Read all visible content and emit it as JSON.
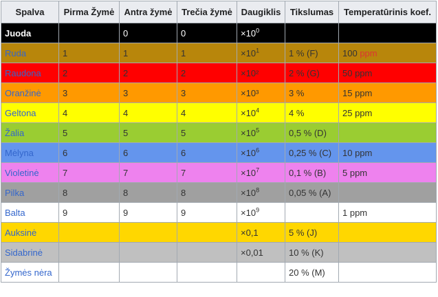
{
  "headers": [
    "Spalva",
    "Pirma Žymė",
    "Antra žymė",
    "Trečia žymė",
    "Daugiklis",
    "Tikslumas",
    "Temperatūrinis koef."
  ],
  "rows": [
    {
      "name": "Juoda",
      "bg": "#000000",
      "d1": "",
      "d2": "0",
      "d3": "0",
      "mult_base": "×10",
      "mult_exp": "0",
      "tol": "",
      "temp": "",
      "temp_unit": ""
    },
    {
      "name": "Ruda",
      "bg": "#b8860b",
      "d1": "1",
      "d2": "1",
      "d3": "1",
      "mult_base": "×10",
      "mult_exp": "1",
      "tol": "1 % (F)",
      "temp": "100 ",
      "temp_unit": "ppm"
    },
    {
      "name": "Raudona",
      "bg": "#ff0000",
      "d1": "2",
      "d2": "2",
      "d3": "2",
      "mult_base": "×10²",
      "mult_exp": "",
      "tol": "2 % (G)",
      "temp": "50 ppm",
      "temp_unit": ""
    },
    {
      "name": "Oranžinė",
      "bg": "#ff9900",
      "d1": "3",
      "d2": "3",
      "d3": "3",
      "mult_base": "×10³",
      "mult_exp": "",
      "tol": "3 %",
      "temp": "15 ppm",
      "temp_unit": ""
    },
    {
      "name": "Geltona",
      "bg": "#ffff00",
      "d1": "4",
      "d2": "4",
      "d3": "4",
      "mult_base": "×10",
      "mult_exp": "4",
      "tol": "4 %",
      "temp": "25 ppm",
      "temp_unit": ""
    },
    {
      "name": "Žalia",
      "bg": "#9acd32",
      "d1": "5",
      "d2": "5",
      "d3": "5",
      "mult_base": "×10",
      "mult_exp": "5",
      "tol": "0,5 % (D)",
      "temp": "",
      "temp_unit": ""
    },
    {
      "name": "Mėlyna",
      "bg": "#6495ed",
      "d1": "6",
      "d2": "6",
      "d3": "6",
      "mult_base": "×10",
      "mult_exp": "6",
      "tol": "0,25 % (C)",
      "temp": "10 ppm",
      "temp_unit": ""
    },
    {
      "name": "Violetinė",
      "bg": "#ee82ee",
      "d1": "7",
      "d2": "7",
      "d3": "7",
      "mult_base": "×10",
      "mult_exp": "7",
      "tol": "0,1 % (B)",
      "temp": "5 ppm",
      "temp_unit": ""
    },
    {
      "name": "Pilka",
      "bg": "#a0a0a0",
      "d1": "8",
      "d2": "8",
      "d3": "8",
      "mult_base": "×10",
      "mult_exp": "8",
      "tol": "0,05 % (A)",
      "temp": "",
      "temp_unit": ""
    },
    {
      "name": "Balta",
      "bg": "#ffffff",
      "d1": "9",
      "d2": "9",
      "d3": "9",
      "mult_base": "×10",
      "mult_exp": "9",
      "tol": "",
      "temp": "1 ppm",
      "temp_unit": ""
    },
    {
      "name": "Auksinė",
      "bg": "#ffd700",
      "d1": "",
      "d2": "",
      "d3": "",
      "mult_base": "×0,1",
      "mult_exp": "",
      "tol": "5 % (J)",
      "temp": "",
      "temp_unit": ""
    },
    {
      "name": "Sidabrinė",
      "bg": "#c0c0c0",
      "d1": "",
      "d2": "",
      "d3": "",
      "mult_base": "×0,01",
      "mult_exp": "",
      "tol": "10 % (K)",
      "temp": "",
      "temp_unit": ""
    },
    {
      "name": "Žymės nėra",
      "bg": "#ffffff",
      "d1": "",
      "d2": "",
      "d3": "",
      "mult_base": "",
      "mult_exp": "",
      "tol": "20 % (M)",
      "temp": "",
      "temp_unit": ""
    }
  ]
}
